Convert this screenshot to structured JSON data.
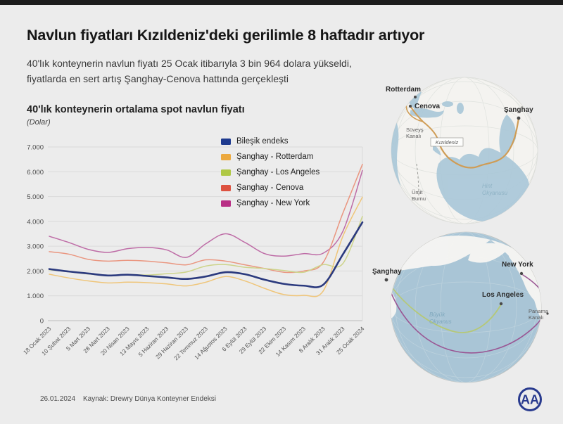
{
  "page": {
    "background": "#ececec",
    "top_bar_color": "#1c1c1c"
  },
  "header": {
    "title": "Navlun fiyatları Kızıldeniz'deki gerilimle 8 haftadır artıyor",
    "subtitle_lines": [
      "40'lık konteynerin navlun fiyatı 25 Ocak itibarıyla 3 bin 964 dolara yükseldi,",
      "fiyatlarda en sert artış Şanghay-Cenova hattında gerçekleşti"
    ]
  },
  "chart": {
    "heading": "40'lık konteynerin ortalama spot navlun fiyatı",
    "unit_label": "(Dolar)"
  },
  "chart_data": {
    "type": "line",
    "title": "40'lık konteynerin ortalama spot navlun fiyatı",
    "unit": "Dolar",
    "categories": [
      "18 Ocak 2023",
      "10 Şubat 2023",
      "5 Mart 2023",
      "28 Mart 2023",
      "20 Nisan 2023",
      "13 Mayıs 2023",
      "5 Haziran 2023",
      "29 Haziran 2023",
      "22 Temmuz 2023",
      "14 Ağustos 2023",
      "6 Eylül 2023",
      "29 Eylül 2023",
      "22 Ekim 2023",
      "14 Kasım 2023",
      "8 Aralık 2023",
      "31 Aralık 2023",
      "25 Ocak 2024"
    ],
    "yticks_labels": [
      "7.000",
      "6.000",
      "5.000",
      "4.000",
      "3.000",
      "2.000",
      "1.000",
      "0"
    ],
    "ylim": [
      0,
      7000
    ],
    "grid": true,
    "legend_position": "inside-top-right",
    "series": [
      {
        "name": "Bileşik endeks",
        "swatch_color": "#1e3a8f",
        "line_color": "#2b3a7e",
        "line_width": 2.6,
        "values": [
          2080,
          1980,
          1900,
          1820,
          1850,
          1800,
          1740,
          1680,
          1780,
          1950,
          1870,
          1650,
          1480,
          1410,
          1450,
          2670,
          3964
        ]
      },
      {
        "name": "Şanghay - Rotterdam",
        "swatch_color": "#eca93f",
        "line_color": "#efc579",
        "line_width": 1.5,
        "values": [
          1870,
          1720,
          1600,
          1520,
          1550,
          1530,
          1480,
          1400,
          1550,
          1780,
          1600,
          1300,
          1050,
          1020,
          1200,
          3400,
          4980
        ]
      },
      {
        "name": "Şanghay - Los Angeles",
        "swatch_color": "#afc845",
        "line_color": "#cdd48b",
        "line_width": 1.5,
        "values": [
          2050,
          1970,
          1880,
          1820,
          1860,
          1840,
          1890,
          1960,
          2200,
          2260,
          2150,
          2100,
          2020,
          1950,
          2260,
          2300,
          4200
        ]
      },
      {
        "name": "Şanghay  - Cenova",
        "swatch_color": "#dd5240",
        "line_color": "#ea9680",
        "line_width": 1.5,
        "values": [
          2780,
          2680,
          2470,
          2400,
          2430,
          2400,
          2330,
          2250,
          2450,
          2400,
          2250,
          2100,
          1950,
          2000,
          2350,
          4330,
          6300
        ]
      },
      {
        "name": "Şanghay - New York",
        "swatch_color": "#b82e85",
        "line_color": "#be6ca6",
        "line_width": 1.5,
        "values": [
          3400,
          3150,
          2870,
          2750,
          2900,
          2950,
          2850,
          2550,
          3100,
          3500,
          3150,
          2700,
          2600,
          2700,
          2720,
          3600,
          6050
        ]
      }
    ]
  },
  "maps": {
    "globe1": {
      "cities": {
        "rotterdam": "Rotterdam",
        "cenova": "Cenova",
        "sanghay": "Şanghay"
      },
      "labels": {
        "suez": [
          "Süveyş",
          "Kanalı"
        ],
        "kizildeniz": "Kızıldeniz",
        "umit_burnu": [
          "Ümit",
          "Burnu"
        ],
        "hint_okyanusu": [
          "Hint",
          "Okyanusu"
        ]
      },
      "route_color": "#cf9c55",
      "ocean_color": "#a9c7d8"
    },
    "globe2": {
      "cities": {
        "sanghay": "Şanghay",
        "new_york": "New York",
        "los_angeles": "Los Angeles"
      },
      "labels": {
        "panama": [
          "Panama",
          "Kanalı"
        ],
        "buyuk_okyanus": [
          "Büyük",
          "Okyanus"
        ]
      },
      "route_la_color": "#b5c878",
      "route_ny_color": "#9a5794",
      "ocean_color": "#a9c5d6"
    }
  },
  "footer": {
    "date": "26.01.2024",
    "source": "Kaynak: Drewry Dünya Konteyner Endeksi",
    "logo_text": "AA"
  }
}
